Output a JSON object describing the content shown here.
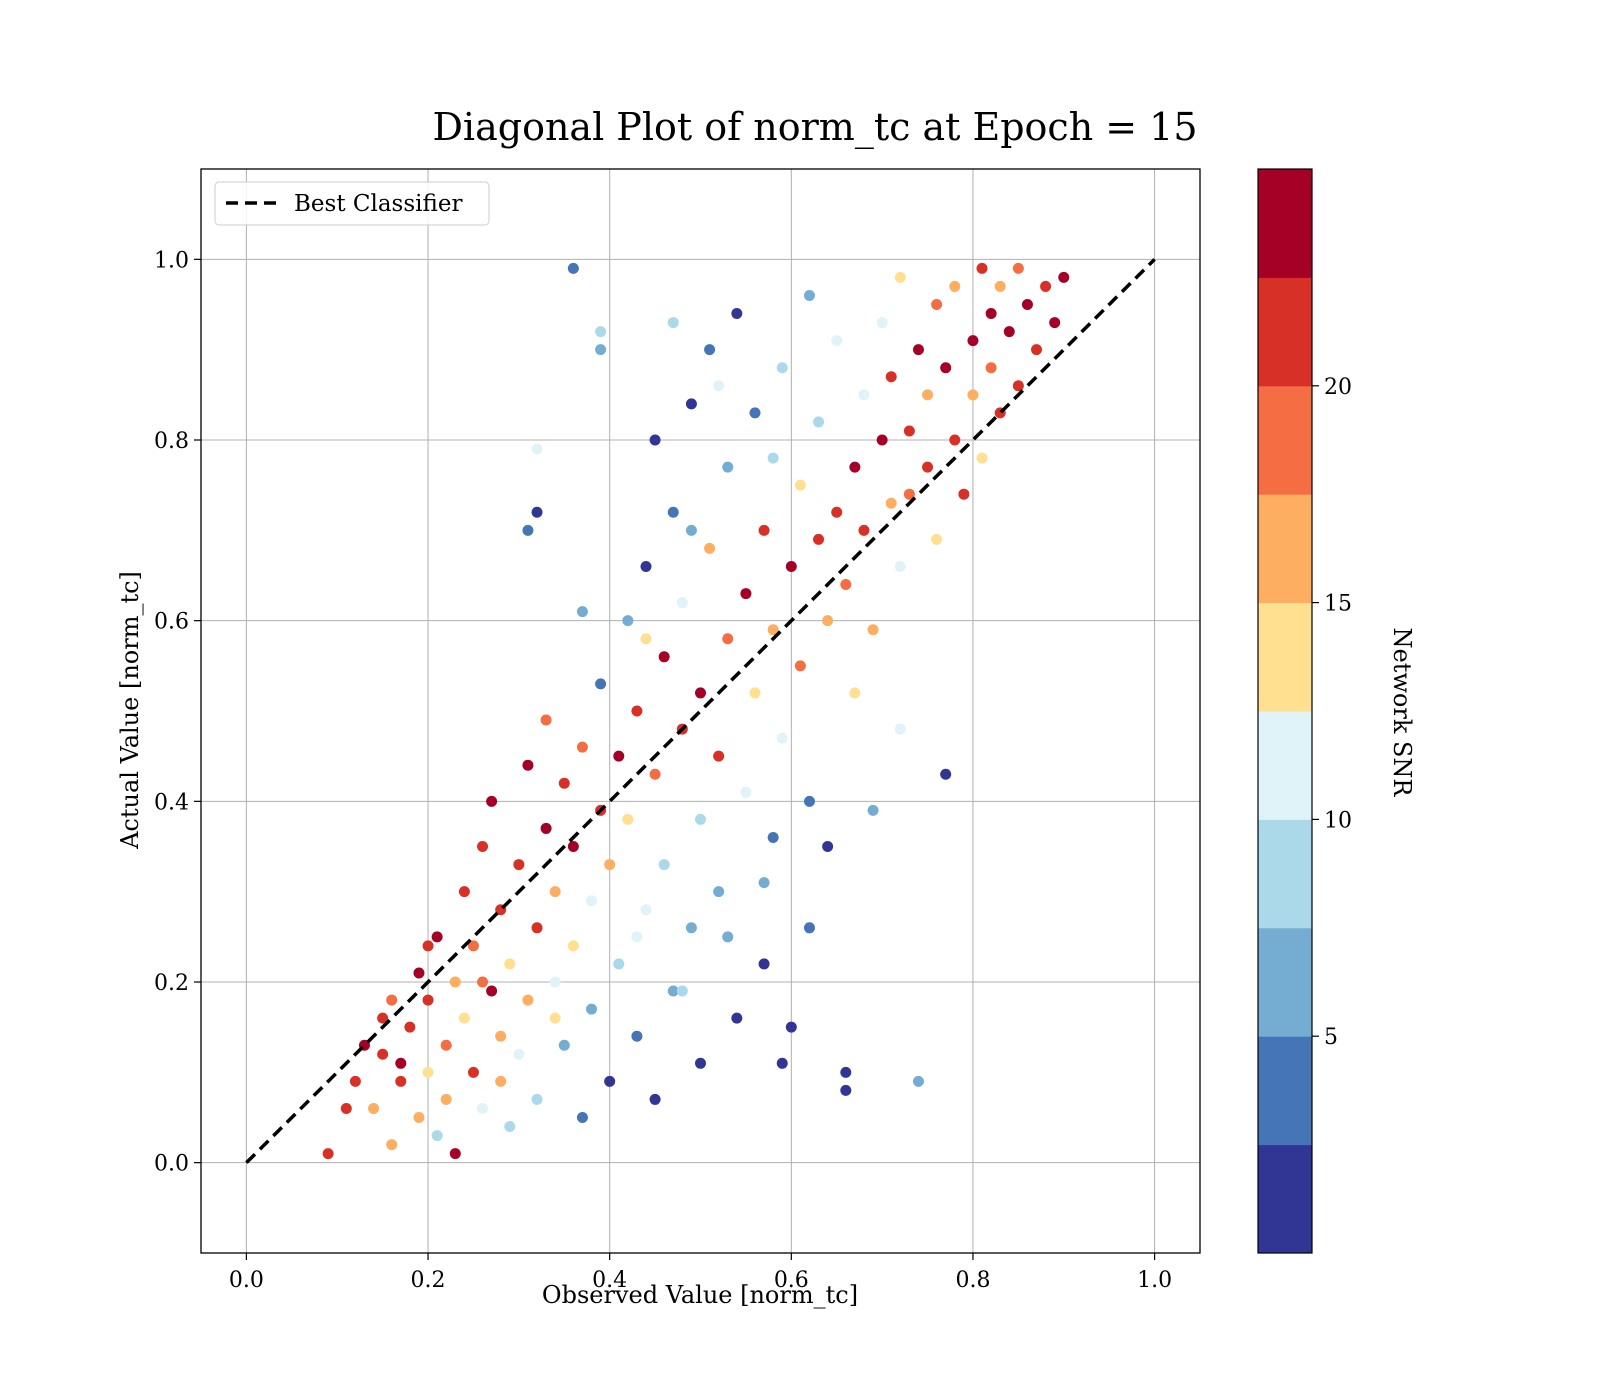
{
  "chart_data": {
    "type": "scatter",
    "title": "Diagonal Plot of norm_tc at Epoch = 15",
    "xlabel": "Observed Value [norm_tc]",
    "ylabel": "Actual Value [norm_tc]",
    "xlim": [
      -0.05,
      1.05
    ],
    "ylim": [
      -0.1,
      1.1
    ],
    "xticks": [
      "0.0",
      "0.2",
      "0.4",
      "0.6",
      "0.8",
      "1.0"
    ],
    "yticks": [
      "0.0",
      "0.2",
      "0.4",
      "0.6",
      "0.8",
      "1.0"
    ],
    "grid": true,
    "legend": {
      "position": "top-left",
      "entries": [
        {
          "label": "Best Classifier",
          "style": "black dashed line"
        }
      ]
    },
    "reference_line": {
      "name": "Best Classifier",
      "x": [
        0.0,
        1.0
      ],
      "y": [
        0.0,
        1.0
      ],
      "color": "#000000",
      "dash": "dashed"
    },
    "colorbar": {
      "label": "Network SNR",
      "range": [
        0,
        25
      ],
      "ticks": [
        "5",
        "10",
        "15",
        "20"
      ],
      "colors": [
        "#313695",
        "#4575b4",
        "#74add1",
        "#abd9e9",
        "#e0f3f8",
        "#fee090",
        "#fdae61",
        "#f46d43",
        "#d73027",
        "#a50026"
      ]
    },
    "points": [
      [
        0.09,
        0.01,
        22
      ],
      [
        0.11,
        0.06,
        22
      ],
      [
        0.12,
        0.09,
        20
      ],
      [
        0.13,
        0.13,
        23
      ],
      [
        0.14,
        0.06,
        17
      ],
      [
        0.15,
        0.12,
        21
      ],
      [
        0.16,
        0.02,
        16
      ],
      [
        0.16,
        0.18,
        18
      ],
      [
        0.17,
        0.09,
        22
      ],
      [
        0.18,
        0.15,
        22
      ],
      [
        0.19,
        0.05,
        16
      ],
      [
        0.19,
        0.21,
        24
      ],
      [
        0.2,
        0.1,
        14
      ],
      [
        0.2,
        0.18,
        22
      ],
      [
        0.21,
        0.03,
        9
      ],
      [
        0.21,
        0.25,
        23
      ],
      [
        0.22,
        0.13,
        19
      ],
      [
        0.22,
        0.07,
        15
      ],
      [
        0.23,
        0.01,
        23
      ],
      [
        0.23,
        0.2,
        17
      ],
      [
        0.24,
        0.3,
        22
      ],
      [
        0.24,
        0.16,
        14
      ],
      [
        0.25,
        0.1,
        21
      ],
      [
        0.25,
        0.24,
        18
      ],
      [
        0.26,
        0.35,
        20
      ],
      [
        0.26,
        0.06,
        12
      ],
      [
        0.27,
        0.19,
        23
      ],
      [
        0.27,
        0.4,
        24
      ],
      [
        0.28,
        0.14,
        16
      ],
      [
        0.28,
        0.28,
        21
      ],
      [
        0.29,
        0.04,
        9
      ],
      [
        0.29,
        0.22,
        14
      ],
      [
        0.3,
        0.33,
        22
      ],
      [
        0.3,
        0.12,
        11
      ],
      [
        0.31,
        0.44,
        23
      ],
      [
        0.31,
        0.18,
        15
      ],
      [
        0.32,
        0.26,
        20
      ],
      [
        0.32,
        0.07,
        8
      ],
      [
        0.33,
        0.37,
        24
      ],
      [
        0.33,
        0.49,
        18
      ],
      [
        0.34,
        0.2,
        12
      ],
      [
        0.34,
        0.3,
        16
      ],
      [
        0.35,
        0.13,
        6
      ],
      [
        0.35,
        0.42,
        21
      ],
      [
        0.36,
        0.24,
        13
      ],
      [
        0.36,
        0.35,
        23
      ],
      [
        0.37,
        0.05,
        4
      ],
      [
        0.37,
        0.46,
        19
      ],
      [
        0.38,
        0.29,
        10
      ],
      [
        0.38,
        0.17,
        7
      ],
      [
        0.39,
        0.39,
        22
      ],
      [
        0.39,
        0.53,
        3
      ],
      [
        0.4,
        0.09,
        2
      ],
      [
        0.4,
        0.33,
        17
      ],
      [
        0.41,
        0.45,
        24
      ],
      [
        0.41,
        0.22,
        9
      ],
      [
        0.42,
        0.6,
        5
      ],
      [
        0.42,
        0.38,
        14
      ],
      [
        0.43,
        0.14,
        3
      ],
      [
        0.43,
        0.5,
        21
      ],
      [
        0.44,
        0.28,
        11
      ],
      [
        0.44,
        0.66,
        2
      ],
      [
        0.45,
        0.43,
        18
      ],
      [
        0.45,
        0.07,
        1
      ],
      [
        0.46,
        0.56,
        23
      ],
      [
        0.46,
        0.33,
        8
      ],
      [
        0.47,
        0.19,
        5
      ],
      [
        0.47,
        0.72,
        4
      ],
      [
        0.48,
        0.48,
        20
      ],
      [
        0.48,
        0.62,
        12
      ],
      [
        0.49,
        0.26,
        6
      ],
      [
        0.49,
        0.84,
        1
      ],
      [
        0.5,
        0.52,
        24
      ],
      [
        0.5,
        0.38,
        9
      ],
      [
        0.5,
        0.11,
        2
      ],
      [
        0.51,
        0.68,
        15
      ],
      [
        0.51,
        0.9,
        3
      ],
      [
        0.52,
        0.45,
        22
      ],
      [
        0.52,
        0.3,
        7
      ],
      [
        0.53,
        0.58,
        18
      ],
      [
        0.53,
        0.77,
        5
      ],
      [
        0.54,
        0.16,
        1
      ],
      [
        0.54,
        0.94,
        2
      ],
      [
        0.55,
        0.63,
        23
      ],
      [
        0.55,
        0.41,
        10
      ],
      [
        0.56,
        0.52,
        13
      ],
      [
        0.56,
        0.83,
        4
      ],
      [
        0.57,
        0.22,
        1
      ],
      [
        0.57,
        0.7,
        21
      ],
      [
        0.58,
        0.36,
        3
      ],
      [
        0.58,
        0.59,
        17
      ],
      [
        0.59,
        0.47,
        11
      ],
      [
        0.59,
        0.88,
        8
      ],
      [
        0.6,
        0.66,
        24
      ],
      [
        0.6,
        0.15,
        2
      ],
      [
        0.61,
        0.75,
        14
      ],
      [
        0.61,
        0.55,
        19
      ],
      [
        0.62,
        0.4,
        4
      ],
      [
        0.62,
        0.96,
        6
      ],
      [
        0.63,
        0.69,
        22
      ],
      [
        0.63,
        0.82,
        9
      ],
      [
        0.64,
        0.6,
        16
      ],
      [
        0.64,
        0.35,
        1
      ],
      [
        0.65,
        0.72,
        21
      ],
      [
        0.65,
        0.91,
        12
      ],
      [
        0.66,
        0.64,
        18
      ],
      [
        0.66,
        0.08,
        1
      ],
      [
        0.67,
        0.77,
        23
      ],
      [
        0.67,
        0.52,
        13
      ],
      [
        0.68,
        0.85,
        10
      ],
      [
        0.68,
        0.7,
        20
      ],
      [
        0.69,
        0.59,
        15
      ],
      [
        0.7,
        0.8,
        24
      ],
      [
        0.7,
        0.93,
        11
      ],
      [
        0.71,
        0.73,
        17
      ],
      [
        0.71,
        0.87,
        22
      ],
      [
        0.72,
        0.66,
        12
      ],
      [
        0.72,
        0.98,
        14
      ],
      [
        0.73,
        0.81,
        21
      ],
      [
        0.73,
        0.74,
        19
      ],
      [
        0.74,
        0.9,
        23
      ],
      [
        0.74,
        0.09,
        7
      ],
      [
        0.75,
        0.85,
        16
      ],
      [
        0.75,
        0.77,
        22
      ],
      [
        0.76,
        0.95,
        18
      ],
      [
        0.76,
        0.69,
        13
      ],
      [
        0.77,
        0.43,
        1
      ],
      [
        0.77,
        0.88,
        24
      ],
      [
        0.78,
        0.8,
        20
      ],
      [
        0.78,
        0.97,
        15
      ],
      [
        0.79,
        0.74,
        22
      ],
      [
        0.8,
        0.91,
        23
      ],
      [
        0.8,
        0.85,
        17
      ],
      [
        0.81,
        0.99,
        21
      ],
      [
        0.81,
        0.78,
        14
      ],
      [
        0.82,
        0.94,
        24
      ],
      [
        0.82,
        0.88,
        19
      ],
      [
        0.83,
        0.83,
        22
      ],
      [
        0.83,
        0.97,
        16
      ],
      [
        0.84,
        0.92,
        23
      ],
      [
        0.85,
        0.86,
        20
      ],
      [
        0.85,
        0.99,
        18
      ],
      [
        0.86,
        0.95,
        24
      ],
      [
        0.87,
        0.9,
        21
      ],
      [
        0.88,
        0.97,
        22
      ],
      [
        0.89,
        0.93,
        23
      ],
      [
        0.9,
        0.98,
        24
      ],
      [
        0.36,
        0.99,
        3
      ],
      [
        0.32,
        0.72,
        1
      ],
      [
        0.31,
        0.7,
        4
      ],
      [
        0.32,
        0.79,
        12
      ],
      [
        0.39,
        0.9,
        5
      ],
      [
        0.39,
        0.92,
        8
      ],
      [
        0.37,
        0.61,
        6
      ],
      [
        0.69,
        0.39,
        7
      ],
      [
        0.72,
        0.48,
        10
      ],
      [
        0.66,
        0.1,
        2
      ],
      [
        0.2,
        0.24,
        22
      ],
      [
        0.15,
        0.16,
        21
      ],
      [
        0.17,
        0.11,
        23
      ],
      [
        0.26,
        0.2,
        18
      ],
      [
        0.28,
        0.09,
        15
      ],
      [
        0.34,
        0.16,
        13
      ],
      [
        0.43,
        0.25,
        12
      ],
      [
        0.48,
        0.19,
        9
      ],
      [
        0.53,
        0.25,
        6
      ],
      [
        0.57,
        0.31,
        5
      ],
      [
        0.59,
        0.11,
        2
      ],
      [
        0.62,
        0.26,
        3
      ],
      [
        0.45,
        0.8,
        2
      ],
      [
        0.47,
        0.93,
        9
      ],
      [
        0.52,
        0.86,
        11
      ],
      [
        0.58,
        0.78,
        8
      ],
      [
        0.44,
        0.58,
        13
      ],
      [
        0.49,
        0.7,
        7
      ]
    ]
  }
}
